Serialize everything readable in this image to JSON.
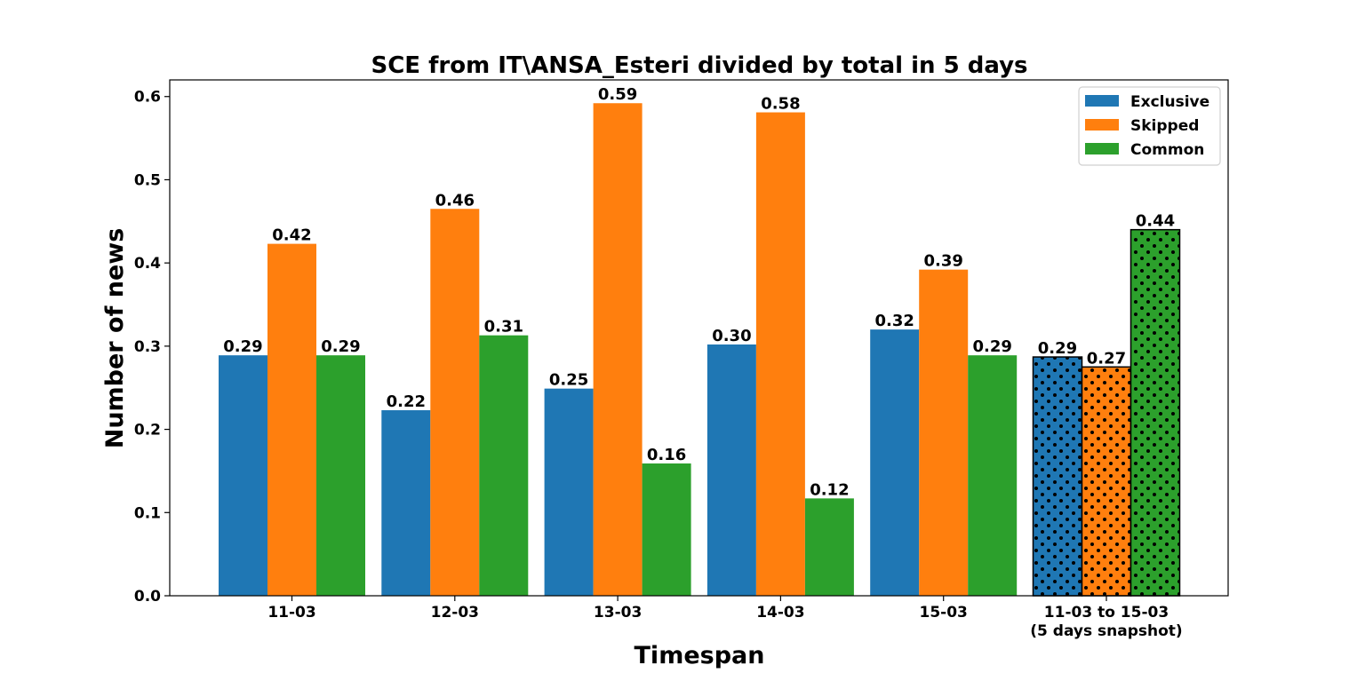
{
  "chart_data": {
    "type": "bar",
    "title": "SCE from IT\\ANSA_Esteri divided by total in 5 days",
    "xlabel": "Timespan",
    "ylabel": "Number of news",
    "ylim": [
      0,
      0.62
    ],
    "yticks": [
      "0.0",
      "0.1",
      "0.2",
      "0.3",
      "0.4",
      "0.5",
      "0.6"
    ],
    "categories": [
      "11-03",
      "12-03",
      "13-03",
      "14-03",
      "15-03",
      "11-03 to 15-03\n(5 days snapshot)"
    ],
    "legend_position": "top-right",
    "grid": false,
    "hatched_category": "11-03 to 15-03\n(5 days snapshot)",
    "series": [
      {
        "name": "Exclusive",
        "color": "#1f77b4",
        "values": [
          0.289,
          0.223,
          0.249,
          0.302,
          0.32,
          0.287
        ],
        "labels": [
          "0.29",
          "0.22",
          "0.25",
          "0.30",
          "0.32",
          "0.29"
        ]
      },
      {
        "name": "Skipped",
        "color": "#ff7f0e",
        "values": [
          0.423,
          0.465,
          0.592,
          0.581,
          0.392,
          0.275
        ],
        "labels": [
          "0.42",
          "0.46",
          "0.59",
          "0.58",
          "0.39",
          "0.27"
        ]
      },
      {
        "name": "Common",
        "color": "#2ca02c",
        "values": [
          0.289,
          0.313,
          0.159,
          0.117,
          0.289,
          0.44
        ],
        "labels": [
          "0.29",
          "0.31",
          "0.16",
          "0.12",
          "0.29",
          "0.44"
        ]
      }
    ]
  }
}
